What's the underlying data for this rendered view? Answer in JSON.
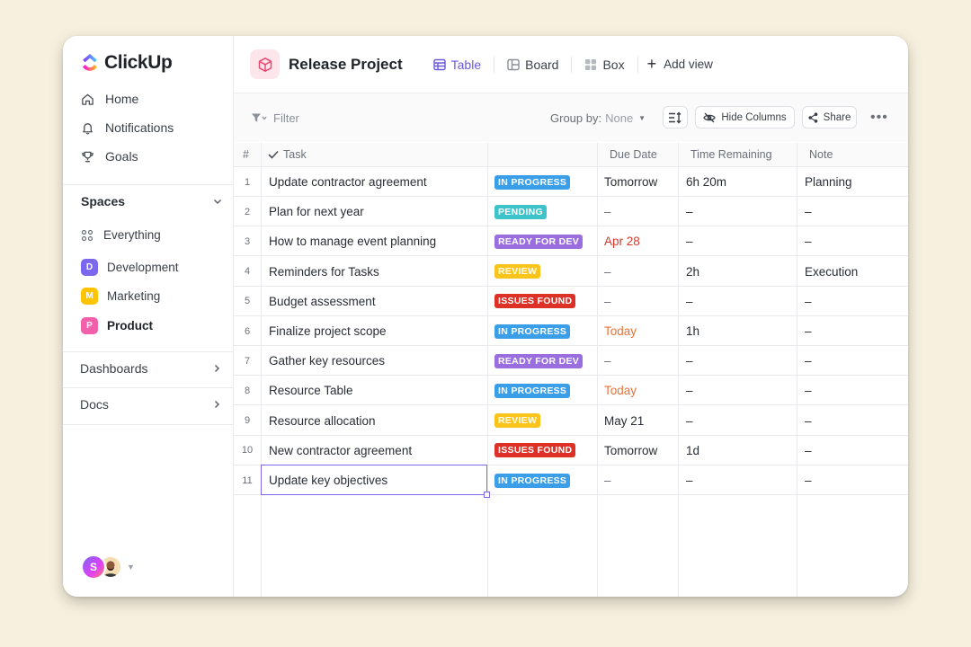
{
  "brand": {
    "name": "ClickUp"
  },
  "sidebar": {
    "nav": [
      {
        "label": "Home",
        "icon": "home-icon"
      },
      {
        "label": "Notifications",
        "icon": "bell-icon"
      },
      {
        "label": "Goals",
        "icon": "trophy-icon"
      }
    ],
    "spaces_label": "Spaces",
    "everything_label": "Everything",
    "spaces": [
      {
        "badge": "D",
        "label": "Development",
        "color": "#7b68ee"
      },
      {
        "badge": "M",
        "label": "Marketing",
        "color": "#ffc400"
      },
      {
        "badge": "P",
        "label": "Product",
        "color": "#f25fab"
      }
    ],
    "dashboards_label": "Dashboards",
    "docs_label": "Docs",
    "user_initial": "S"
  },
  "header": {
    "title": "Release Project",
    "tabs": [
      {
        "label": "Table",
        "active": true
      },
      {
        "label": "Board"
      },
      {
        "label": "Box"
      }
    ],
    "add_view": "Add view"
  },
  "toolbar": {
    "filter": "Filter",
    "group_by_label": "Group by:",
    "group_by_value": "None",
    "hide_columns": "Hide Columns",
    "share": "Share"
  },
  "table": {
    "columns": {
      "num": "#",
      "task": "Task",
      "due": "Due Date",
      "time": "Time Remaining",
      "note": "Note"
    },
    "status_colors": {
      "IN PROGRESS": "#3a9fe8",
      "PENDING": "#3dc3c9",
      "READY FOR DEV": "#9b6ee0",
      "REVIEW": "#fbc41b",
      "ISSUES FOUND": "#dd3026"
    },
    "rows": [
      {
        "num": "1",
        "task": "Update contractor agreement",
        "status": "IN PROGRESS",
        "due": "Tomorrow",
        "due_color": "#292d34",
        "time": "6h 20m",
        "note": "Planning"
      },
      {
        "num": "2",
        "task": "Plan for next year",
        "status": "PENDING",
        "due": "–",
        "due_color": "#6b7079",
        "time": "–",
        "note": "–"
      },
      {
        "num": "3",
        "task": "How to manage event planning",
        "status": "READY FOR DEV",
        "due": "Apr 28",
        "due_color": "#d9372b",
        "time": "–",
        "note": "–"
      },
      {
        "num": "4",
        "task": "Reminders for Tasks",
        "status": "REVIEW",
        "due": "–",
        "due_color": "#6b7079",
        "time": "2h",
        "note": "Execution"
      },
      {
        "num": "5",
        "task": "Budget assessment",
        "status": "ISSUES FOUND",
        "due": "–",
        "due_color": "#6b7079",
        "time": "–",
        "note": "–"
      },
      {
        "num": "6",
        "task": "Finalize project scope",
        "status": "IN PROGRESS",
        "due": "Today",
        "due_color": "#e8733a",
        "time": "1h",
        "note": "–"
      },
      {
        "num": "7",
        "task": "Gather key resources",
        "status": "READY FOR DEV",
        "due": "–",
        "due_color": "#6b7079",
        "time": "–",
        "note": "–"
      },
      {
        "num": "8",
        "task": "Resource Table",
        "status": "IN PROGRESS",
        "due": "Today",
        "due_color": "#e8733a",
        "time": "–",
        "note": "–"
      },
      {
        "num": "9",
        "task": "Resource allocation",
        "status": "REVIEW",
        "due": "May 21",
        "due_color": "#292d34",
        "time": "–",
        "note": "–"
      },
      {
        "num": "10",
        "task": "New contractor agreement",
        "status": "ISSUES FOUND",
        "due": "Tomorrow",
        "due_color": "#292d34",
        "time": "1d",
        "note": "–"
      },
      {
        "num": "11",
        "task": "Update key objectives",
        "status": "IN PROGRESS",
        "due": "–",
        "due_color": "#6b7079",
        "time": "–",
        "note": "–"
      }
    ]
  }
}
